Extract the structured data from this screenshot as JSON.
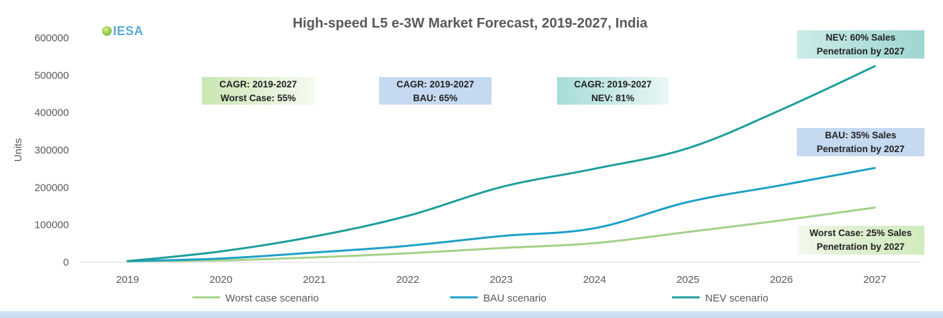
{
  "logo": {
    "text": "IESA"
  },
  "chart_data": {
    "type": "line",
    "title": "High-speed L5 e-3W Market Forecast, 2019-2027, India",
    "ylabel": "Units",
    "xlabel": "",
    "categories": [
      "2019",
      "2020",
      "2021",
      "2022",
      "2023",
      "2024",
      "2025",
      "2026",
      "2027"
    ],
    "ylim": [
      0,
      600000
    ],
    "yticks": [
      0,
      100000,
      200000,
      300000,
      400000,
      500000,
      600000
    ],
    "grid": false,
    "legend_position": "bottom",
    "series": [
      {
        "name": "Worst case scenario",
        "color": "#a3d18a",
        "values": [
          3000,
          5000,
          13000,
          24000,
          38000,
          51000,
          81000,
          112000,
          146000
        ]
      },
      {
        "name": "BAU scenario",
        "color": "#1ea0c6",
        "values": [
          3000,
          10000,
          26000,
          44000,
          70000,
          91000,
          161000,
          206000,
          252000
        ]
      },
      {
        "name": "NEV scenario",
        "color": "#1e9e9b",
        "values": [
          3000,
          29000,
          69000,
          124000,
          201000,
          250000,
          305000,
          408000,
          524000
        ]
      }
    ],
    "annotations": [
      {
        "lines": [
          "CAGR: 2019-2027",
          "Worst Case: 55%"
        ]
      },
      {
        "lines": [
          "CAGR: 2019-2027",
          "BAU: 65%"
        ]
      },
      {
        "lines": [
          "CAGR: 2019-2027",
          "NEV: 81%"
        ]
      },
      {
        "lines": [
          "NEV: 60% Sales",
          "Penetration by 2027"
        ]
      },
      {
        "lines": [
          "BAU: 35% Sales",
          "Penetration by 2027"
        ]
      },
      {
        "lines": [
          "Worst Case: 25% Sales",
          "Penetration by 2027"
        ]
      }
    ]
  }
}
